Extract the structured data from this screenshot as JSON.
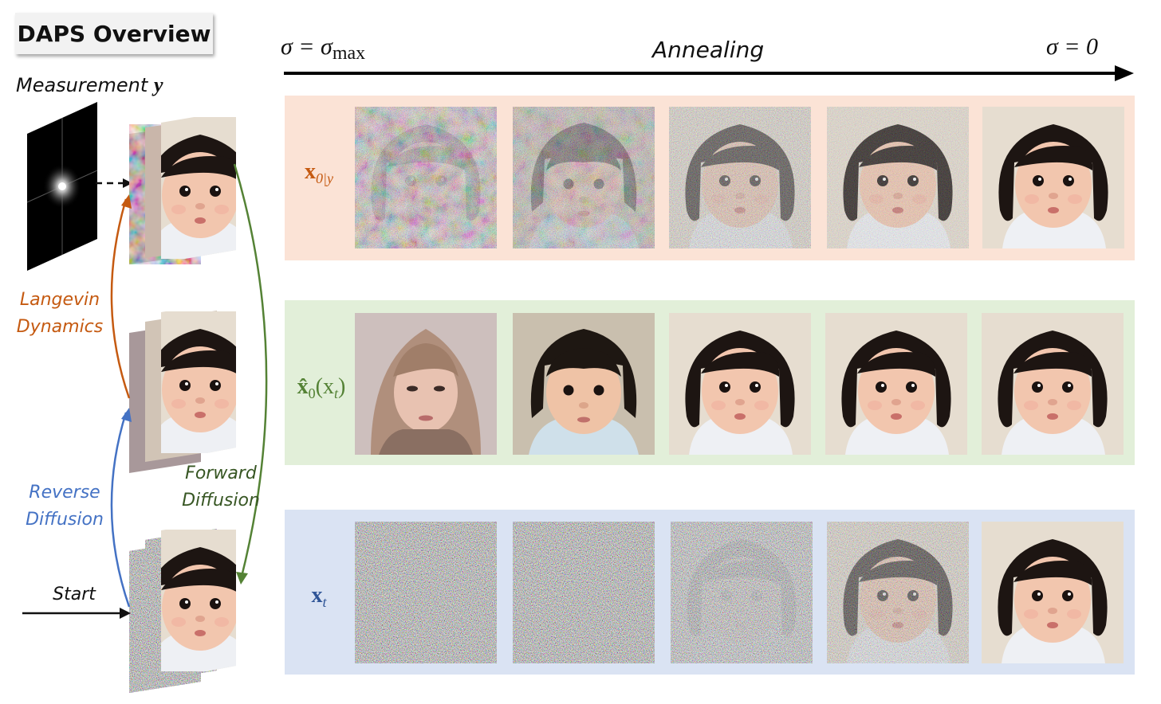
{
  "title": "DAPS Overview",
  "measurement_label": "Measurement",
  "measurement_symbol": "y",
  "annealing": {
    "start_lhs": "σ = σ",
    "start_sub": "max",
    "label": "Annealing",
    "end": "σ = 0"
  },
  "left_labels": {
    "langevin": [
      "Langevin",
      "Dynamics"
    ],
    "reverse": [
      "Reverse",
      "Diffusion"
    ],
    "forward": [
      "Forward",
      "Diffusion"
    ],
    "start": "Start"
  },
  "rows": [
    {
      "id": "x0y",
      "label_main": "x",
      "label_sub": "0|y",
      "band_color": "#fbe3d6",
      "label_color": "#c55a11"
    },
    {
      "id": "x0hat",
      "label_main": "x̂",
      "label_sub": "0",
      "label_suffix": "(x",
      "label_sub2": "t",
      "label_end": ")",
      "band_color": "#e2efd9",
      "label_color": "#548235"
    },
    {
      "id": "xt",
      "label_main": "x",
      "label_sub": "t",
      "band_color": "#dae3f3",
      "label_color": "#2f5597"
    }
  ],
  "colors": {
    "langevin": "#c55a11",
    "reverse": "#4472c4",
    "forward": "#548235"
  }
}
